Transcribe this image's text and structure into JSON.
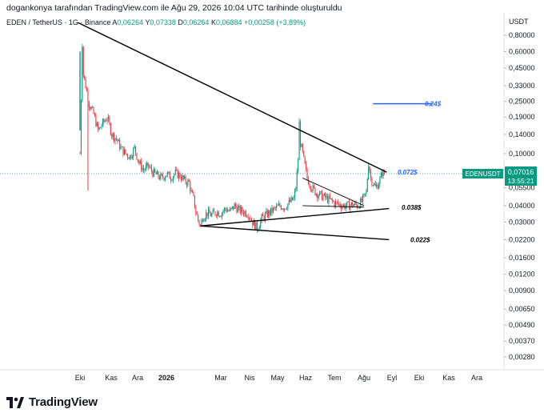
{
  "header": {
    "text": "dogankonya tarafından TradingView.com ile Ağu 29, 2026 10:04 UTC tarihinde oluşturuldu"
  },
  "symbol": {
    "name": "EDEN / TetherUS · 1G · Binance",
    "open_label": "A",
    "open": "0,06264",
    "high_label": "Y",
    "high": "0,07338",
    "low_label": "D",
    "low": "0,06264",
    "close_label": "K",
    "close": "0,06884",
    "change": "+0,00258 (+3,89%)"
  },
  "axis": {
    "currency": "USDT",
    "price_ticks": [
      "0,80000",
      "0,60000",
      "0,45000",
      "0,33000",
      "0,25000",
      "0,19000",
      "0,14000",
      "0,10000",
      "0,07500",
      "0,05500",
      "0,04000",
      "0,03000",
      "0,02200",
      "0,01600",
      "0,01200",
      "0,00900",
      "0,00650",
      "0,00490",
      "0,00370",
      "0,00280"
    ],
    "time_ticks": [
      "Eki",
      "Kas",
      "Ara",
      "2026",
      "Mar",
      "Nis",
      "May",
      "Haz",
      "Tem",
      "Ağu",
      "Eyl",
      "Eki",
      "Kas",
      "Ara"
    ]
  },
  "last_price": {
    "symbol": "EDENUSDT",
    "value": "0,07016",
    "countdown": "13:55:21"
  },
  "annotations": {
    "target": "0.24$",
    "resistance": "0.072$",
    "support": "0.038$",
    "low": "0.022$"
  },
  "colors": {
    "up": "#089981",
    "down": "#f23645",
    "target_line": "#2962ff",
    "trend_line": "#000000",
    "last_price_bg": "#089981"
  },
  "footer": {
    "brand": "TradingView"
  },
  "chart_data": {
    "type": "candlestick",
    "scale": "log",
    "x_axis_labels": [
      "Eki",
      "Kas",
      "Ara",
      "2026",
      "Mar",
      "Nis",
      "May",
      "Haz",
      "Tem",
      "Ağu",
      "Eyl",
      "Eki",
      "Kas",
      "Ara"
    ],
    "y_axis_ticks": [
      0.8,
      0.6,
      0.45,
      0.33,
      0.25,
      0.19,
      0.14,
      0.1,
      0.075,
      0.055,
      0.04,
      0.03,
      0.022,
      0.016,
      0.012,
      0.009,
      0.0065,
      0.0049,
      0.0037,
      0.0028
    ],
    "last_price": 0.07016,
    "price_path": [
      [
        0,
        0.1
      ],
      [
        2,
        0.7
      ],
      [
        3,
        0.4
      ],
      [
        5,
        0.33
      ],
      [
        8,
        0.24
      ],
      [
        12,
        0.2
      ],
      [
        16,
        0.15
      ],
      [
        20,
        0.17
      ],
      [
        24,
        0.19
      ],
      [
        28,
        0.14
      ],
      [
        32,
        0.13
      ],
      [
        36,
        0.11
      ],
      [
        40,
        0.1
      ],
      [
        44,
        0.095
      ],
      [
        48,
        0.11
      ],
      [
        52,
        0.085
      ],
      [
        56,
        0.075
      ],
      [
        60,
        0.08
      ],
      [
        64,
        0.072
      ],
      [
        68,
        0.068
      ],
      [
        72,
        0.065
      ],
      [
        76,
        0.07
      ],
      [
        80,
        0.066
      ],
      [
        84,
        0.071
      ],
      [
        88,
        0.068
      ],
      [
        92,
        0.062
      ],
      [
        96,
        0.06
      ],
      [
        98,
        0.05
      ],
      [
        100,
        0.045
      ],
      [
        102,
        0.036
      ],
      [
        104,
        0.031
      ],
      [
        106,
        0.028
      ],
      [
        108,
        0.033
      ],
      [
        112,
        0.035
      ],
      [
        116,
        0.034
      ],
      [
        120,
        0.036
      ],
      [
        124,
        0.035
      ],
      [
        128,
        0.038
      ],
      [
        132,
        0.036
      ],
      [
        136,
        0.04
      ],
      [
        140,
        0.037
      ],
      [
        144,
        0.036
      ],
      [
        148,
        0.035
      ],
      [
        152,
        0.03
      ],
      [
        156,
        0.027
      ],
      [
        160,
        0.032
      ],
      [
        164,
        0.034
      ],
      [
        168,
        0.036
      ],
      [
        172,
        0.038
      ],
      [
        176,
        0.04
      ],
      [
        180,
        0.039
      ],
      [
        184,
        0.042
      ],
      [
        188,
        0.045
      ],
      [
        190,
        0.055
      ],
      [
        192,
        0.09
      ],
      [
        193,
        0.17
      ],
      [
        194,
        0.12
      ],
      [
        196,
        0.1
      ],
      [
        198,
        0.08
      ],
      [
        200,
        0.065
      ],
      [
        204,
        0.055
      ],
      [
        208,
        0.05
      ],
      [
        212,
        0.048
      ],
      [
        216,
        0.046
      ],
      [
        220,
        0.044
      ],
      [
        224,
        0.042
      ],
      [
        228,
        0.041
      ],
      [
        232,
        0.04
      ],
      [
        236,
        0.04
      ],
      [
        240,
        0.041
      ],
      [
        244,
        0.04
      ],
      [
        248,
        0.043
      ],
      [
        252,
        0.05
      ],
      [
        254,
        0.085
      ],
      [
        256,
        0.065
      ],
      [
        258,
        0.06
      ],
      [
        260,
        0.055
      ],
      [
        262,
        0.058
      ],
      [
        264,
        0.063
      ],
      [
        266,
        0.072
      ],
      [
        268,
        0.07
      ]
    ],
    "trend_lines": [
      {
        "name": "descending-resistance",
        "from": [
          -2,
          1.0
        ],
        "to": [
          270,
          0.072
        ]
      },
      {
        "name": "ascending-support",
        "from": [
          106,
          0.028
        ],
        "to": [
          272,
          0.038
        ]
      },
      {
        "name": "lower-support",
        "from": [
          106,
          0.028
        ],
        "to": [
          272,
          0.022
        ]
      },
      {
        "name": "wedge-upper",
        "from": [
          196,
          0.065
        ],
        "to": [
          250,
          0.04
        ]
      },
      {
        "name": "wedge-lower",
        "from": [
          196,
          0.04
        ],
        "to": [
          250,
          0.039
        ]
      }
    ],
    "target_line": {
      "value": 0.24,
      "x_range": [
        196,
        226
      ]
    }
  }
}
